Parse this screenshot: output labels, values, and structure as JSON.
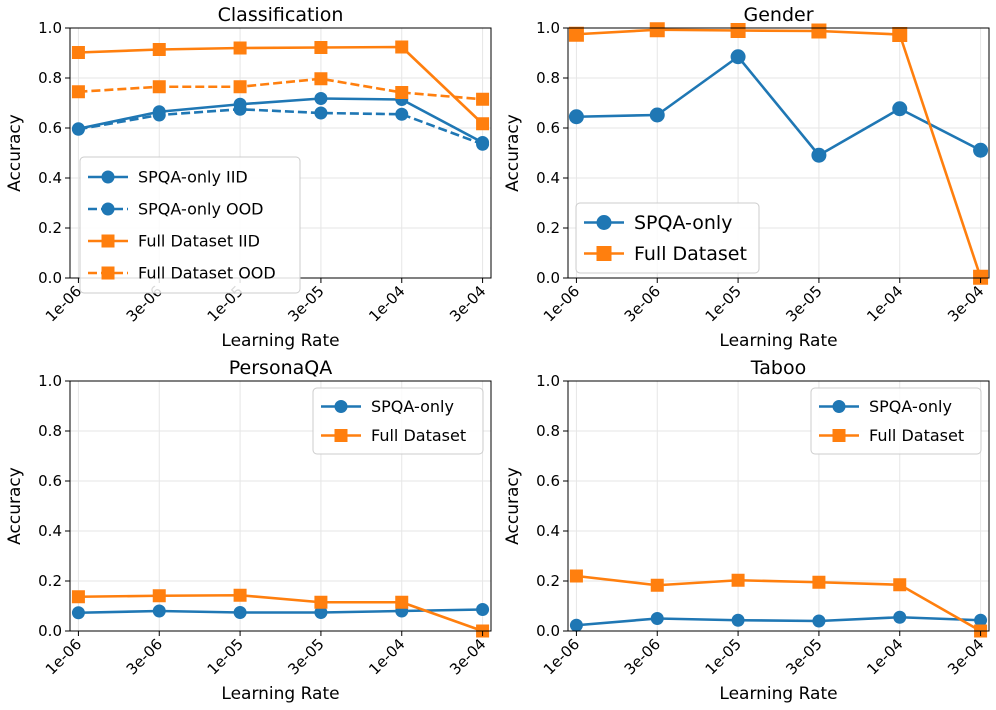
{
  "colors": {
    "spqa": "#1f77b4",
    "full": "#ff7f0e"
  },
  "chart_data": [
    {
      "type": "line",
      "title": "Classification",
      "xlabel": "Learning Rate",
      "ylabel": "Accuracy",
      "categories": [
        "1e-06",
        "3e-06",
        "1e-05",
        "3e-05",
        "1e-04",
        "3e-04"
      ],
      "ylim": [
        0,
        1.0
      ],
      "yticks": [
        "0.0",
        "0.2",
        "0.4",
        "0.6",
        "0.8",
        "1.0"
      ],
      "grid": true,
      "legend_position": "center-left",
      "series": [
        {
          "name": "SPQA-only IID",
          "color": "spqa",
          "marker": "circle",
          "dashed": false,
          "values": [
            0.597,
            0.665,
            0.695,
            0.718,
            0.714,
            0.542
          ]
        },
        {
          "name": "SPQA-only OOD",
          "color": "spqa",
          "marker": "circle",
          "dashed": true,
          "values": [
            0.595,
            0.652,
            0.675,
            0.66,
            0.655,
            0.535
          ]
        },
        {
          "name": "Full Dataset IID",
          "color": "full",
          "marker": "square",
          "dashed": false,
          "values": [
            0.902,
            0.914,
            0.92,
            0.922,
            0.924,
            0.617
          ]
        },
        {
          "name": "Full Dataset OOD",
          "color": "full",
          "marker": "square",
          "dashed": true,
          "values": [
            0.745,
            0.765,
            0.765,
            0.797,
            0.742,
            0.715
          ]
        }
      ]
    },
    {
      "type": "line",
      "title": "Gender",
      "xlabel": "Learning Rate",
      "ylabel": "Accuracy",
      "categories": [
        "1e-06",
        "3e-06",
        "1e-05",
        "3e-05",
        "1e-04",
        "3e-04"
      ],
      "ylim": [
        0,
        1.0
      ],
      "yticks": [
        "0.0",
        "0.2",
        "0.4",
        "0.6",
        "0.8",
        "1.0"
      ],
      "grid": true,
      "legend_position": "lower-left",
      "series": [
        {
          "name": "SPQA-only",
          "color": "spqa",
          "marker": "circle",
          "dashed": false,
          "values": [
            0.645,
            0.652,
            0.885,
            0.491,
            0.677,
            0.511
          ]
        },
        {
          "name": "Full Dataset",
          "color": "full",
          "marker": "square",
          "dashed": false,
          "values": [
            0.975,
            0.993,
            0.99,
            0.988,
            0.974,
            0.003
          ]
        }
      ]
    },
    {
      "type": "line",
      "title": "PersonaQA",
      "xlabel": "Learning Rate",
      "ylabel": "Accuracy",
      "categories": [
        "1e-06",
        "3e-06",
        "1e-05",
        "3e-05",
        "1e-04",
        "3e-04"
      ],
      "ylim": [
        0,
        1.0
      ],
      "yticks": [
        "0.0",
        "0.2",
        "0.4",
        "0.6",
        "0.8",
        "1.0"
      ],
      "grid": true,
      "legend_position": "upper-right",
      "series": [
        {
          "name": "SPQA-only",
          "color": "spqa",
          "marker": "circle",
          "dashed": false,
          "values": [
            0.073,
            0.08,
            0.074,
            0.074,
            0.08,
            0.086
          ]
        },
        {
          "name": "Full Dataset",
          "color": "full",
          "marker": "square",
          "dashed": false,
          "values": [
            0.137,
            0.141,
            0.143,
            0.115,
            0.115,
            0.0
          ]
        }
      ]
    },
    {
      "type": "line",
      "title": "Taboo",
      "xlabel": "Learning Rate",
      "ylabel": "Accuracy",
      "categories": [
        "1e-06",
        "3e-06",
        "1e-05",
        "3e-05",
        "1e-04",
        "3e-04"
      ],
      "ylim": [
        0,
        1.0
      ],
      "yticks": [
        "0.0",
        "0.2",
        "0.4",
        "0.6",
        "0.8",
        "1.0"
      ],
      "grid": true,
      "legend_position": "upper-right",
      "series": [
        {
          "name": "SPQA-only",
          "color": "spqa",
          "marker": "circle",
          "dashed": false,
          "values": [
            0.023,
            0.05,
            0.043,
            0.04,
            0.055,
            0.043
          ]
        },
        {
          "name": "Full Dataset",
          "color": "full",
          "marker": "square",
          "dashed": false,
          "values": [
            0.22,
            0.183,
            0.203,
            0.195,
            0.185,
            0.0
          ]
        }
      ]
    }
  ]
}
